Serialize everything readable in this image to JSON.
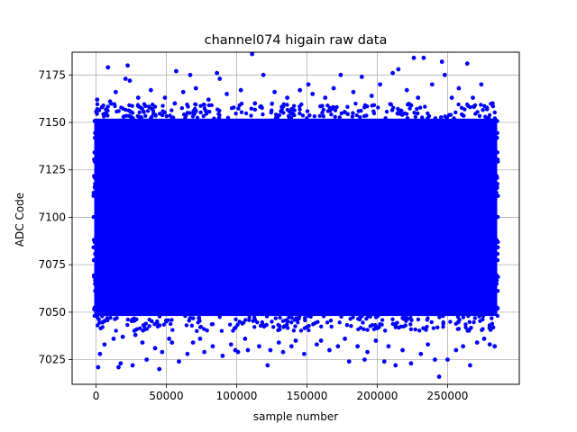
{
  "chart_data": {
    "type": "scatter",
    "title": "channel074 higain raw data",
    "xlabel": "sample number",
    "ylabel": "ADC Code",
    "xlim": [
      -17000,
      301000
    ],
    "ylim": [
      7012,
      7187
    ],
    "xticks": [
      0,
      50000,
      100000,
      150000,
      200000,
      250000
    ],
    "xtick_labels": [
      "0",
      "50000",
      "100000",
      "150000",
      "200000",
      "250000"
    ],
    "yticks": [
      7025,
      7050,
      7075,
      7100,
      7125,
      7150,
      7175
    ],
    "ytick_labels": [
      "7025",
      "7050",
      "7075",
      "7100",
      "7125",
      "7150",
      "7175"
    ],
    "grid": true,
    "marker_color": "#0000ff",
    "series": [
      {
        "dense_band": {
          "x_range": [
            0,
            284000
          ],
          "y_range": [
            7048,
            7152
          ]
        },
        "points": [
          [
            800,
            7162
          ],
          [
            1500,
            7021
          ],
          [
            2800,
            7028
          ],
          [
            4200,
            7158
          ],
          [
            6000,
            7033
          ],
          [
            8500,
            7179
          ],
          [
            10000,
            7161
          ],
          [
            12500,
            7036
          ],
          [
            14000,
            7166
          ],
          [
            16000,
            7021
          ],
          [
            17500,
            7023
          ],
          [
            19000,
            7037
          ],
          [
            21000,
            7173
          ],
          [
            22500,
            7180
          ],
          [
            24000,
            7172
          ],
          [
            26000,
            7022
          ],
          [
            28000,
            7038
          ],
          [
            30000,
            7163
          ],
          [
            33000,
            7034
          ],
          [
            36000,
            7025
          ],
          [
            39000,
            7167
          ],
          [
            42000,
            7031
          ],
          [
            45000,
            7020
          ],
          [
            47000,
            7029
          ],
          [
            49000,
            7163
          ],
          [
            52000,
            7036
          ],
          [
            54000,
            7034
          ],
          [
            56000,
            7160
          ],
          [
            57000,
            7177
          ],
          [
            59000,
            7024
          ],
          [
            62000,
            7166
          ],
          [
            65000,
            7028
          ],
          [
            67000,
            7175
          ],
          [
            69000,
            7034
          ],
          [
            71000,
            7168
          ],
          [
            74000,
            7036
          ],
          [
            77000,
            7029
          ],
          [
            80000,
            7162
          ],
          [
            83000,
            7032
          ],
          [
            86000,
            7176
          ],
          [
            88000,
            7173
          ],
          [
            90000,
            7027
          ],
          [
            93000,
            7165
          ],
          [
            96000,
            7033
          ],
          [
            99000,
            7030
          ],
          [
            101000,
            7029
          ],
          [
            103000,
            7167
          ],
          [
            106000,
            7036
          ],
          [
            108000,
            7030
          ],
          [
            111000,
            7186
          ],
          [
            113000,
            7160
          ],
          [
            116000,
            7032
          ],
          [
            119000,
            7175
          ],
          [
            122000,
            7022
          ],
          [
            124000,
            7030
          ],
          [
            127000,
            7166
          ],
          [
            130000,
            7034
          ],
          [
            133000,
            7029
          ],
          [
            136000,
            7163
          ],
          [
            139000,
            7032
          ],
          [
            142000,
            7035
          ],
          [
            145000,
            7167
          ],
          [
            148000,
            7028
          ],
          [
            151000,
            7170
          ],
          [
            154000,
            7165
          ],
          [
            157000,
            7033
          ],
          [
            160000,
            7035
          ],
          [
            163000,
            7163
          ],
          [
            166000,
            7030
          ],
          [
            169000,
            7168
          ],
          [
            172000,
            7032
          ],
          [
            174000,
            7175
          ],
          [
            177000,
            7036
          ],
          [
            180000,
            7024
          ],
          [
            183000,
            7166
          ],
          [
            186000,
            7032
          ],
          [
            189000,
            7174
          ],
          [
            191000,
            7025
          ],
          [
            193000,
            7029
          ],
          [
            196000,
            7164
          ],
          [
            199000,
            7035
          ],
          [
            202000,
            7170
          ],
          [
            205000,
            7024
          ],
          [
            208000,
            7032
          ],
          [
            211000,
            7176
          ],
          [
            213000,
            7022
          ],
          [
            215000,
            7178
          ],
          [
            218000,
            7030
          ],
          [
            221000,
            7167
          ],
          [
            224000,
            7023
          ],
          [
            226000,
            7184
          ],
          [
            229000,
            7163
          ],
          [
            231000,
            7028
          ],
          [
            233000,
            7184
          ],
          [
            236000,
            7033
          ],
          [
            239000,
            7170
          ],
          [
            241000,
            7025
          ],
          [
            244000,
            7016
          ],
          [
            246000,
            7182
          ],
          [
            248000,
            7175
          ],
          [
            250000,
            7025
          ],
          [
            253000,
            7163
          ],
          [
            256000,
            7030
          ],
          [
            258000,
            7168
          ],
          [
            261000,
            7032
          ],
          [
            264000,
            7181
          ],
          [
            266000,
            7022
          ],
          [
            268000,
            7163
          ],
          [
            271000,
            7034
          ],
          [
            274000,
            7170
          ],
          [
            276000,
            7036
          ],
          [
            278000,
            7157
          ],
          [
            280000,
            7033
          ],
          [
            282000,
            7160
          ],
          [
            283500,
            7032
          ]
        ]
      }
    ]
  }
}
